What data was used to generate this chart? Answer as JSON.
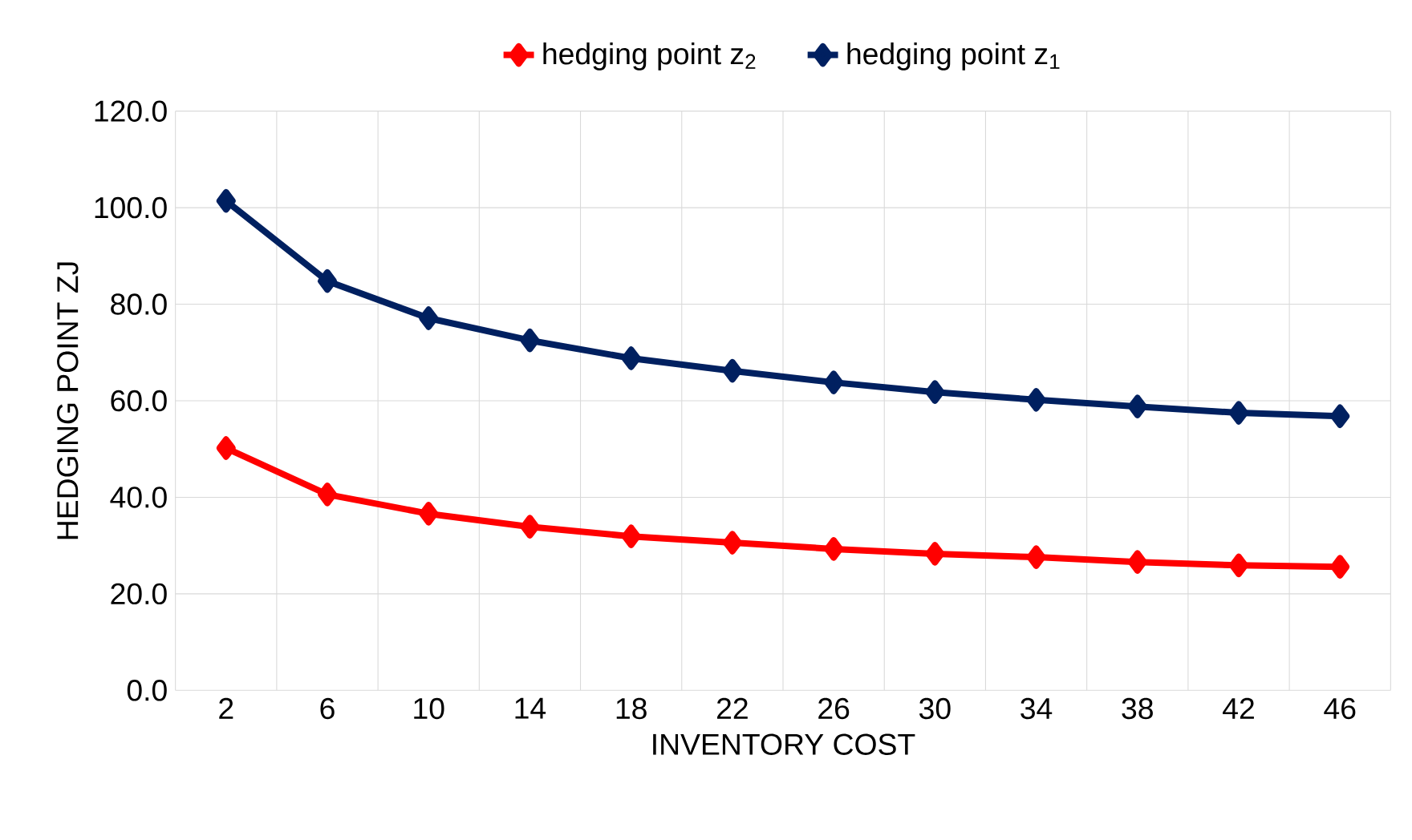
{
  "chart_data": {
    "type": "line",
    "xlabel": "INVENTORY COST",
    "ylabel": "HEDGING POINT ZJ",
    "categories": [
      "2",
      "6",
      "10",
      "14",
      "18",
      "22",
      "26",
      "30",
      "34",
      "38",
      "42",
      "46"
    ],
    "series": [
      {
        "name": "hedging point z$_{2}$",
        "color": "#ff0000",
        "values": [
          50.2,
          40.6,
          36.6,
          33.9,
          31.9,
          30.6,
          29.3,
          28.3,
          27.6,
          26.6,
          25.9,
          25.6
        ]
      },
      {
        "name": "hedging point z$_{1}$",
        "color": "#002060",
        "values": [
          101.4,
          84.8,
          77.1,
          72.5,
          68.8,
          66.2,
          63.8,
          61.8,
          60.2,
          58.8,
          57.5,
          56.8
        ]
      }
    ],
    "ylim": [
      0,
      120
    ],
    "yticks": [
      {
        "value": 0,
        "label": "0.0"
      },
      {
        "value": 20,
        "label": "20.0"
      },
      {
        "value": 40,
        "label": "40.0"
      },
      {
        "value": 60,
        "label": "60.0"
      },
      {
        "value": 80,
        "label": "80.0"
      },
      {
        "value": 100,
        "label": "100.0"
      },
      {
        "value": 120,
        "label": "120.0"
      }
    ],
    "grid": true,
    "legend": "top",
    "marker": "diamond",
    "line_style": "solid"
  }
}
